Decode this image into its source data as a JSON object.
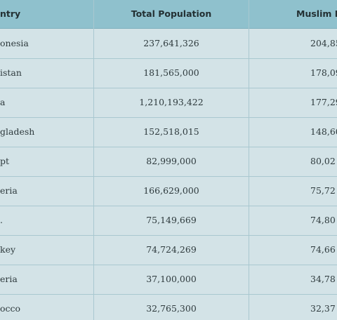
{
  "table": {
    "header": [
      "ntry",
      "Total Population",
      "Muslim Po"
    ],
    "rows": [
      [
        "onesia",
        "237,641,326",
        "204,85"
      ],
      [
        "istan",
        "181,565,000",
        "178,09"
      ],
      [
        "a",
        "1,210,193,422",
        "177,29"
      ],
      [
        "gladesh",
        "152,518,015",
        "148,60"
      ],
      [
        "pt",
        "82,999,000",
        "80,02"
      ],
      [
        "eria",
        "166,629,000",
        "75,72"
      ],
      [
        ".",
        "75,149,669",
        "74,80"
      ],
      [
        "key",
        "74,724,269",
        "74,66"
      ],
      [
        "eria",
        "37,100,000",
        "34,78"
      ],
      [
        "occo",
        "32,765,300",
        "32,37"
      ]
    ]
  }
}
